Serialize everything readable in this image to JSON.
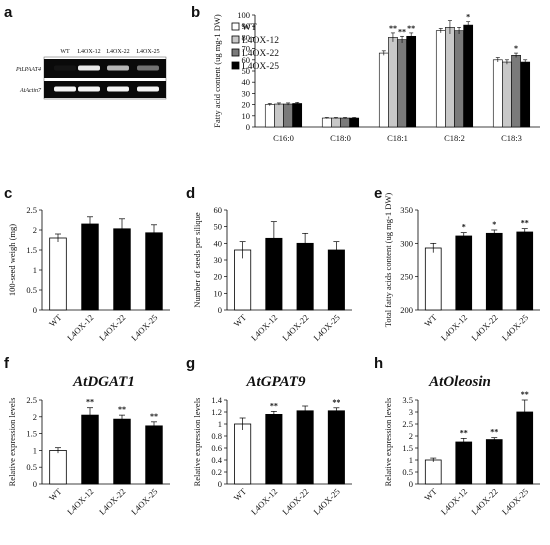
{
  "panels": {
    "a": {
      "letter": "a",
      "lanes": [
        "WT",
        "L4OX-12",
        "L4OX-22",
        "L4OX-25"
      ],
      "rows": [
        "PtLPAAT4",
        "AtActin7"
      ],
      "band_intensity": [
        [
          0.08,
          0.9,
          0.75,
          0.55
        ],
        [
          0.95,
          0.95,
          0.95,
          0.95
        ]
      ]
    },
    "b": {
      "letter": "b"
    },
    "c": {
      "letter": "c"
    },
    "d": {
      "letter": "d"
    },
    "e": {
      "letter": "e"
    },
    "f": {
      "letter": "f",
      "gene": "AtDGAT1"
    },
    "g": {
      "letter": "g",
      "gene": "AtGPAT9"
    },
    "h": {
      "letter": "h",
      "gene": "AtOleosin"
    }
  },
  "colors": {
    "WT": "#ffffff",
    "L4OX-12": "#c8c8c8",
    "L4OX-22": "#7a7a7a",
    "L4OX-25": "#000000",
    "axis": "#000000"
  },
  "chart_data": [
    {
      "id": "b",
      "type": "bar",
      "ylabel": "Fatty acid content (ug mg-1 DW)",
      "ylim": [
        0,
        100
      ],
      "yticks": [
        0,
        10,
        20,
        30,
        40,
        50,
        60,
        70,
        80,
        90,
        100
      ],
      "categories": [
        "C16:0",
        "C18:0",
        "C18:1",
        "C18:2",
        "C18:3"
      ],
      "legend_position": "top-left",
      "series": [
        {
          "name": "WT",
          "values": [
            20,
            8,
            66,
            86,
            60
          ],
          "errors": [
            1,
            0.5,
            2,
            2,
            2
          ],
          "sig": [
            "",
            "",
            "",
            "",
            ""
          ]
        },
        {
          "name": "L4OX-12",
          "values": [
            20.5,
            8,
            80,
            89,
            58
          ],
          "errors": [
            1,
            0.5,
            4,
            6,
            2
          ],
          "sig": [
            "",
            "",
            "**",
            "",
            ""
          ]
        },
        {
          "name": "L4OX-22",
          "values": [
            20.5,
            8,
            78,
            86,
            64
          ],
          "errors": [
            1,
            0.5,
            3,
            3,
            2
          ],
          "sig": [
            "",
            "",
            "**",
            "",
            "*"
          ]
        },
        {
          "name": "L4OX-25",
          "values": [
            21,
            8,
            81,
            91,
            58
          ],
          "errors": [
            1,
            0.5,
            3,
            3,
            2
          ],
          "sig": [
            "",
            "",
            "**",
            "*",
            ""
          ]
        }
      ]
    },
    {
      "id": "c",
      "type": "bar",
      "ylabel": "100-seed weigh (mg)",
      "ylim": [
        0,
        2.5
      ],
      "yticks": [
        0,
        0.5,
        1,
        1.5,
        2,
        2.5
      ],
      "categories": [
        "WT",
        "L4OX-12",
        "L4OX-22",
        "L4OX-25"
      ],
      "values": [
        1.8,
        2.15,
        2.03,
        1.93
      ],
      "errors": [
        0.1,
        0.18,
        0.25,
        0.2
      ],
      "sig": [
        "",
        "",
        "",
        ""
      ]
    },
    {
      "id": "d",
      "type": "bar",
      "ylabel": "Number of seeds per silique",
      "ylim": [
        0,
        60
      ],
      "yticks": [
        0,
        10,
        20,
        30,
        40,
        50,
        60
      ],
      "categories": [
        "WT",
        "L4OX-12",
        "L4OX-22",
        "L4OX-25"
      ],
      "values": [
        36,
        43,
        40,
        36
      ],
      "errors": [
        5,
        10,
        6,
        5
      ],
      "sig": [
        "",
        "",
        "",
        ""
      ]
    },
    {
      "id": "e",
      "type": "bar",
      "ylabel": "Total fatty acids content (ug mg-1 DW)",
      "ylim": [
        200,
        350
      ],
      "yticks": [
        200,
        250,
        300,
        350
      ],
      "categories": [
        "WT",
        "L4OX-12",
        "L4OX-22",
        "L4OX-25"
      ],
      "values": [
        293,
        311,
        315,
        317
      ],
      "errors": [
        7,
        5,
        5,
        5
      ],
      "sig": [
        "",
        "*",
        "*",
        "**"
      ]
    },
    {
      "id": "f",
      "type": "bar",
      "ylabel": "Relative expression levels",
      "ylim": [
        0,
        2.5
      ],
      "yticks": [
        0,
        0.5,
        1,
        1.5,
        2,
        2.5
      ],
      "categories": [
        "WT",
        "L4OX-12",
        "L4OX-22",
        "L4OX-25"
      ],
      "values": [
        1.0,
        2.05,
        1.93,
        1.73
      ],
      "errors": [
        0.08,
        0.22,
        0.12,
        0.12
      ],
      "sig": [
        "",
        "**",
        "**",
        "**"
      ]
    },
    {
      "id": "g",
      "type": "bar",
      "ylabel": "Relative expression levels",
      "ylim": [
        0,
        1.4
      ],
      "yticks": [
        0,
        0.2,
        0.4,
        0.6,
        0.8,
        1,
        1.2,
        1.4
      ],
      "categories": [
        "WT",
        "L4OX-12",
        "L4OX-22",
        "L4OX-25"
      ],
      "values": [
        1.0,
        1.16,
        1.22,
        1.22
      ],
      "errors": [
        0.1,
        0.05,
        0.08,
        0.05
      ],
      "sig": [
        "",
        "**",
        "",
        "**"
      ]
    },
    {
      "id": "h",
      "type": "bar",
      "ylabel": "Relative expression levels",
      "ylim": [
        0,
        3.5
      ],
      "yticks": [
        0,
        0.5,
        1,
        1.5,
        2,
        2.5,
        3,
        3.5
      ],
      "categories": [
        "WT",
        "L4OX-12",
        "L4OX-22",
        "L4OX-25"
      ],
      "values": [
        1.0,
        1.75,
        1.85,
        3.0
      ],
      "errors": [
        0.08,
        0.15,
        0.08,
        0.5
      ],
      "sig": [
        "",
        "**",
        "**",
        "**"
      ]
    }
  ]
}
